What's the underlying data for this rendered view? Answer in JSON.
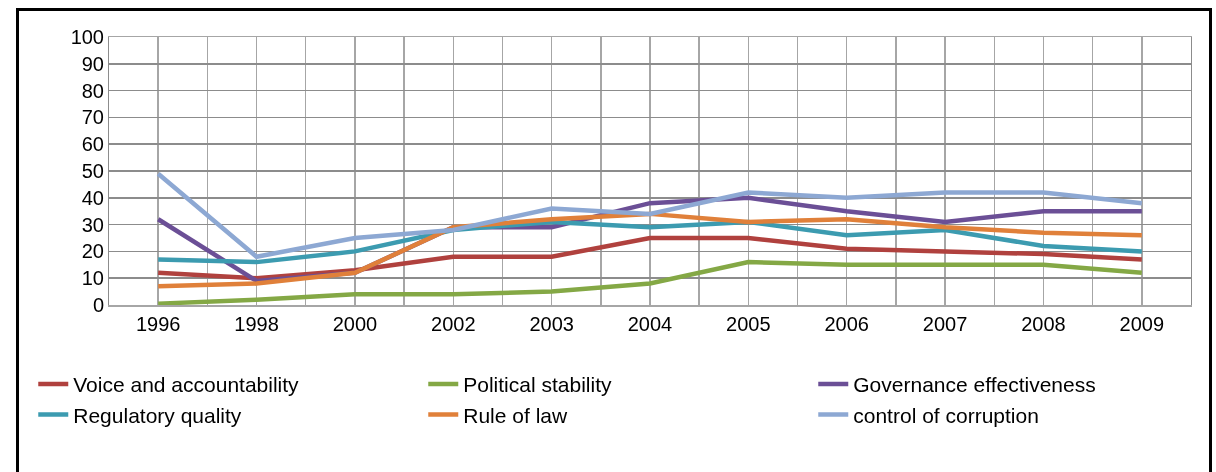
{
  "chart_data": {
    "type": "line",
    "categories": [
      "1996",
      "1998",
      "2000",
      "2002",
      "2003",
      "2004",
      "2005",
      "2006",
      "2007",
      "2008",
      "2009"
    ],
    "series": [
      {
        "name": "Voice and accountability",
        "color": "#b0413e",
        "values": [
          12,
          10,
          13,
          18,
          18,
          25,
          25,
          21,
          20,
          19,
          17
        ]
      },
      {
        "name": "Political stability",
        "color": "#84a845",
        "values": [
          0.5,
          2,
          4,
          4,
          5,
          8,
          16,
          15,
          15,
          15,
          12
        ]
      },
      {
        "name": "Governance effectiveness",
        "color": "#6b4f96",
        "values": [
          32,
          9,
          12,
          29,
          29,
          38,
          40,
          35,
          31,
          35,
          35
        ]
      },
      {
        "name": "Regulatory quality",
        "color": "#3c9bb0",
        "values": [
          17,
          16,
          20,
          28,
          31,
          29,
          31,
          26,
          28,
          22,
          20
        ]
      },
      {
        "name": "Rule of law",
        "color": "#e0803a",
        "values": [
          7,
          8,
          12,
          29,
          32,
          34,
          31,
          32,
          29,
          27,
          26
        ]
      },
      {
        "name": "control of corruption",
        "color": "#8da8d3",
        "values": [
          49,
          18,
          25,
          28,
          36,
          34,
          42,
          40,
          42,
          42,
          38
        ]
      }
    ],
    "ylim": [
      0,
      100
    ],
    "yticks": [
      0,
      10,
      20,
      30,
      40,
      50,
      60,
      70,
      80,
      90,
      100
    ],
    "grid": true,
    "legend": "bottom",
    "marker": "none",
    "line_style": "solid"
  }
}
